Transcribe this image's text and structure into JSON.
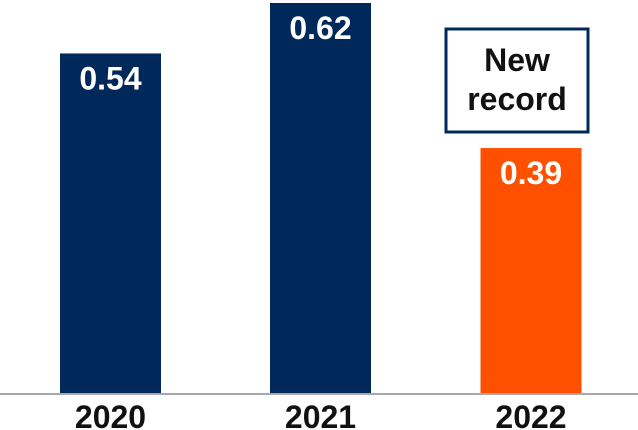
{
  "chart_data": {
    "type": "bar",
    "title": "",
    "xlabel": "",
    "ylabel": "",
    "categories": [
      "2020",
      "2021",
      "2022"
    ],
    "values": [
      0.54,
      0.62,
      0.39
    ],
    "value_labels": [
      "0.54",
      "0.62",
      "0.39"
    ],
    "ylim": [
      0,
      0.62
    ],
    "grid": false,
    "legend": "none",
    "colors": {
      "default_bar": "#00285a",
      "highlight_bar": "#ff5000",
      "baseline": "#a8a8a8",
      "callout_border": "#00285a"
    },
    "highlight_index": 2,
    "annotation": {
      "lines": [
        "New",
        "record"
      ],
      "target_category": "2022"
    }
  }
}
